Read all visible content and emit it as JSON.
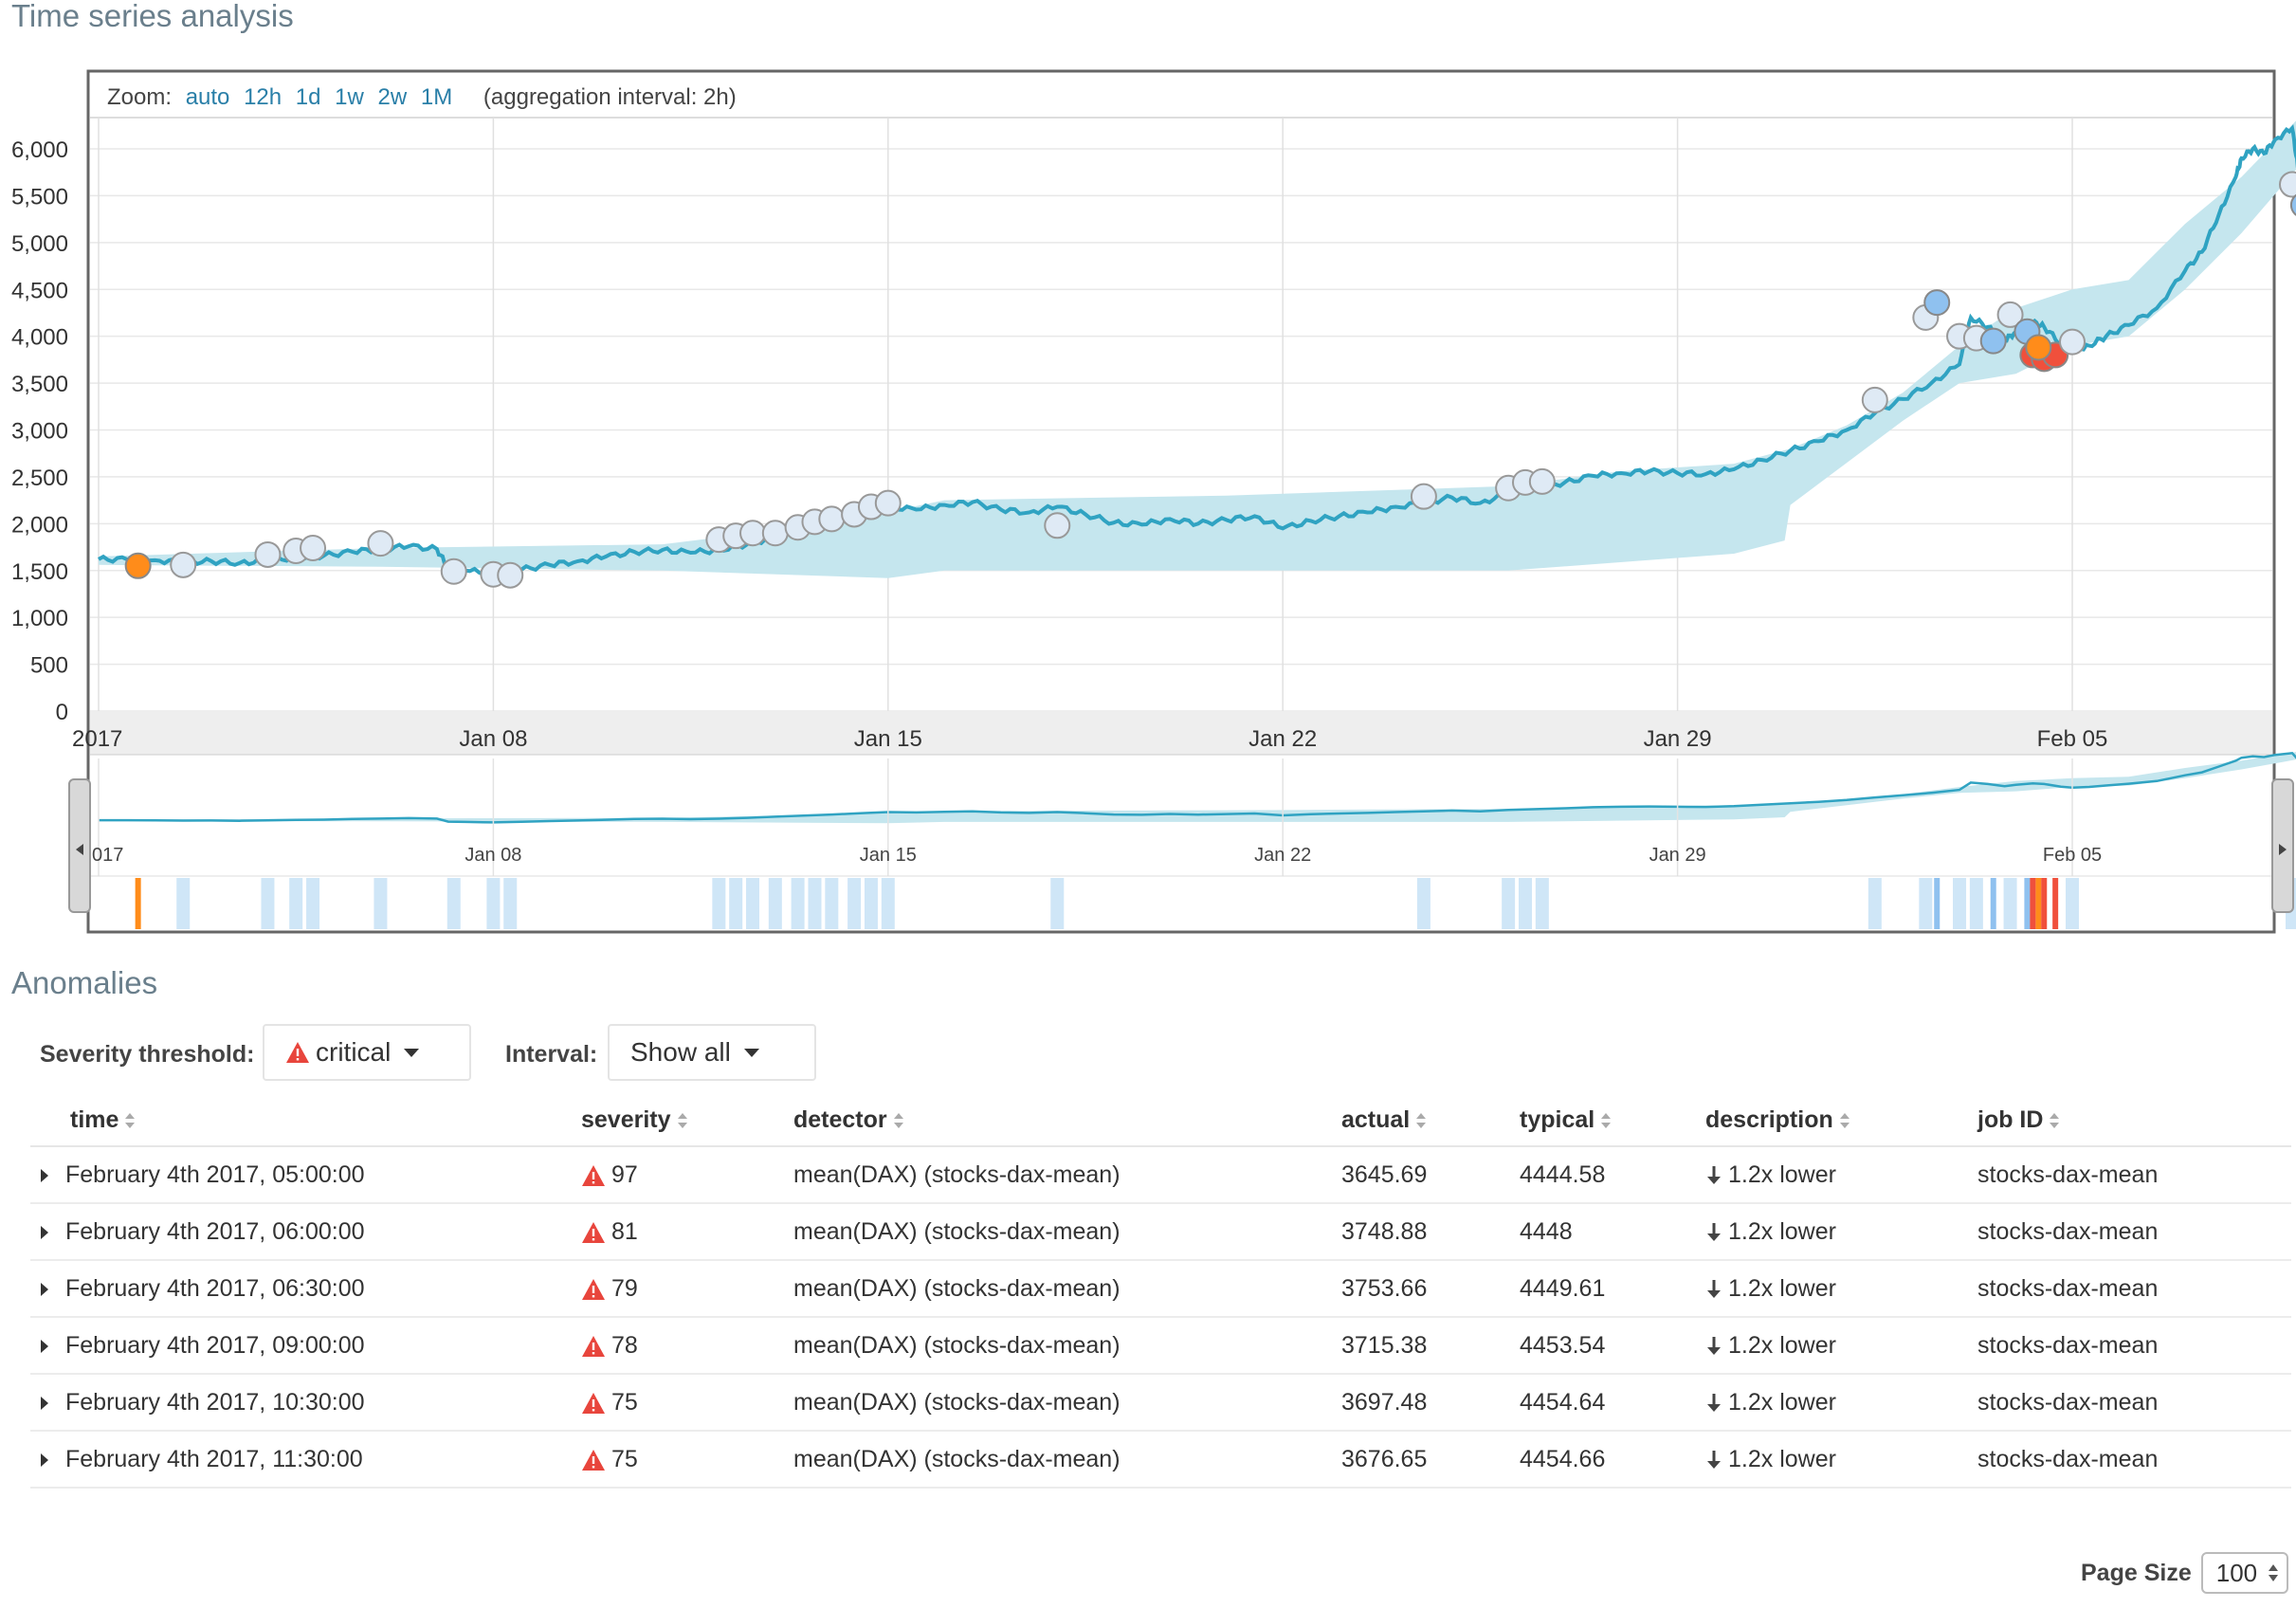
{
  "titles": {
    "timeseries": "Time series analysis",
    "anomalies": "Anomalies"
  },
  "zoom": {
    "label": "Zoom:",
    "options": [
      "auto",
      "12h",
      "1d",
      "1w",
      "2w",
      "1M"
    ],
    "aggregation": "(aggregation interval: 2h)"
  },
  "colors": {
    "line": "#30a3c2",
    "band": "#c5e6ee",
    "marker_low": "#dfeaf5",
    "marker_minor": "#8fc1ef",
    "marker_major": "#ff8c1a",
    "marker_critical": "#f0503c",
    "swimlane_low": "#cfe6f7",
    "link": "#2a7fa8"
  },
  "chart_data": {
    "type": "line",
    "y_ticks": [
      "6,000",
      "5,500",
      "5,000",
      "4,500",
      "4,000",
      "3,500",
      "3,000",
      "2,500",
      "2,000",
      "1,500",
      "1,000",
      "500",
      "0"
    ],
    "x_ticks": [
      "2017",
      "Jan 08",
      "Jan 15",
      "Jan 22",
      "Jan 29",
      "Feb 05"
    ],
    "context_x_ticks": [
      "017",
      "Jan 08",
      "Jan 15",
      "Jan 22",
      "Jan 29",
      "Feb 05"
    ],
    "ylim": [
      0,
      6300
    ],
    "xlim_days": [
      0,
      38
    ],
    "series_points": [
      [
        0,
        1620
      ],
      [
        0.5,
        1620
      ],
      [
        1,
        1610
      ],
      [
        1.5,
        1590
      ],
      [
        2,
        1600
      ],
      [
        2.5,
        1580
      ],
      [
        3,
        1610
      ],
      [
        3.5,
        1640
      ],
      [
        4,
        1660
      ],
      [
        4.5,
        1700
      ],
      [
        5,
        1730
      ],
      [
        5.5,
        1760
      ],
      [
        6,
        1730
      ],
      [
        6.2,
        1520
      ],
      [
        6.5,
        1500
      ],
      [
        7,
        1470
      ],
      [
        7.5,
        1510
      ],
      [
        8,
        1560
      ],
      [
        8.5,
        1600
      ],
      [
        9,
        1650
      ],
      [
        9.5,
        1700
      ],
      [
        10,
        1720
      ],
      [
        10.5,
        1690
      ],
      [
        11,
        1720
      ],
      [
        11.5,
        1780
      ],
      [
        12,
        1860
      ],
      [
        12.5,
        1940
      ],
      [
        13,
        2010
      ],
      [
        13.5,
        2090
      ],
      [
        14,
        2180
      ],
      [
        14.5,
        2150
      ],
      [
        15,
        2200
      ],
      [
        15.5,
        2230
      ],
      [
        16,
        2150
      ],
      [
        16.5,
        2120
      ],
      [
        17,
        2180
      ],
      [
        17.5,
        2100
      ],
      [
        18,
        2010
      ],
      [
        18.5,
        1990
      ],
      [
        19,
        2050
      ],
      [
        19.5,
        2000
      ],
      [
        20,
        2040
      ],
      [
        20.5,
        2080
      ],
      [
        21,
        1950
      ],
      [
        21.5,
        2030
      ],
      [
        22,
        2080
      ],
      [
        22.5,
        2120
      ],
      [
        23,
        2180
      ],
      [
        23.5,
        2220
      ],
      [
        24,
        2280
      ],
      [
        24.5,
        2220
      ],
      [
        25,
        2320
      ],
      [
        25.5,
        2380
      ],
      [
        26,
        2440
      ],
      [
        26.5,
        2510
      ],
      [
        27,
        2540
      ],
      [
        27.5,
        2560
      ],
      [
        28,
        2540
      ],
      [
        28.5,
        2530
      ],
      [
        29,
        2580
      ],
      [
        29.5,
        2680
      ],
      [
        30,
        2780
      ],
      [
        30.5,
        2880
      ],
      [
        31,
        3000
      ],
      [
        31.5,
        3180
      ],
      [
        32,
        3330
      ],
      [
        32.5,
        3500
      ],
      [
        33,
        3700
      ],
      [
        33.2,
        4200
      ],
      [
        33.5,
        4100
      ],
      [
        33.8,
        3950
      ],
      [
        34,
        4050
      ],
      [
        34.3,
        4150
      ],
      [
        34.5,
        4100
      ],
      [
        34.8,
        3920
      ],
      [
        35,
        3850
      ],
      [
        35.3,
        3900
      ],
      [
        35.6,
        4000
      ],
      [
        36,
        4120
      ],
      [
        36.5,
        4300
      ],
      [
        37,
        4700
      ],
      [
        37.3,
        4900
      ],
      [
        37.6,
        5300
      ],
      [
        37.9,
        5700
      ],
      [
        38,
        5900
      ],
      [
        38.2,
        6000
      ],
      [
        38.4,
        5950
      ],
      [
        38.6,
        6100
      ],
      [
        38.9,
        6220
      ],
      [
        39,
        5800
      ]
    ],
    "band_upper_days": [
      [
        0,
        1650
      ],
      [
        5,
        1740
      ],
      [
        10,
        1780
      ],
      [
        13,
        2000
      ],
      [
        15,
        2250
      ],
      [
        20,
        2300
      ],
      [
        25,
        2400
      ],
      [
        27,
        2560
      ],
      [
        29,
        2640
      ],
      [
        30,
        2800
      ],
      [
        31,
        3050
      ],
      [
        32,
        3400
      ],
      [
        33,
        3900
      ],
      [
        34,
        4300
      ],
      [
        35,
        4500
      ],
      [
        36,
        4600
      ],
      [
        37,
        5200
      ],
      [
        38,
        5700
      ],
      [
        39,
        6320
      ]
    ],
    "band_lower_days": [
      [
        0,
        1560
      ],
      [
        5,
        1540
      ],
      [
        10,
        1500
      ],
      [
        14,
        1420
      ],
      [
        15,
        1500
      ],
      [
        20,
        1500
      ],
      [
        25,
        1500
      ],
      [
        29,
        1680
      ],
      [
        29.9,
        1820
      ],
      [
        30,
        2200
      ],
      [
        31,
        2650
      ],
      [
        32,
        3100
      ],
      [
        33,
        3500
      ],
      [
        34,
        3600
      ],
      [
        35,
        3900
      ],
      [
        36,
        4000
      ],
      [
        37,
        4500
      ],
      [
        38,
        5100
      ],
      [
        39,
        5800
      ]
    ],
    "anomaly_markers": [
      {
        "day": 0.7,
        "value": 1550,
        "severity": "major"
      },
      {
        "day": 1.5,
        "value": 1560,
        "severity": "low"
      },
      {
        "day": 3.0,
        "value": 1670,
        "severity": "low"
      },
      {
        "day": 3.5,
        "value": 1710,
        "severity": "low"
      },
      {
        "day": 3.8,
        "value": 1740,
        "severity": "low"
      },
      {
        "day": 5.0,
        "value": 1790,
        "severity": "low"
      },
      {
        "day": 6.3,
        "value": 1490,
        "severity": "low"
      },
      {
        "day": 7.0,
        "value": 1460,
        "severity": "low"
      },
      {
        "day": 7.3,
        "value": 1450,
        "severity": "low"
      },
      {
        "day": 11.0,
        "value": 1830,
        "severity": "low"
      },
      {
        "day": 11.3,
        "value": 1870,
        "severity": "low"
      },
      {
        "day": 11.6,
        "value": 1900,
        "severity": "low"
      },
      {
        "day": 12.0,
        "value": 1900,
        "severity": "low"
      },
      {
        "day": 12.4,
        "value": 1960,
        "severity": "low"
      },
      {
        "day": 12.7,
        "value": 2020,
        "severity": "low"
      },
      {
        "day": 13.0,
        "value": 2050,
        "severity": "low"
      },
      {
        "day": 13.4,
        "value": 2100,
        "severity": "low"
      },
      {
        "day": 13.7,
        "value": 2180,
        "severity": "low"
      },
      {
        "day": 14.0,
        "value": 2220,
        "severity": "low"
      },
      {
        "day": 17.0,
        "value": 1980,
        "severity": "low"
      },
      {
        "day": 23.5,
        "value": 2290,
        "severity": "low"
      },
      {
        "day": 25.0,
        "value": 2380,
        "severity": "low"
      },
      {
        "day": 25.3,
        "value": 2440,
        "severity": "low"
      },
      {
        "day": 25.6,
        "value": 2450,
        "severity": "low"
      },
      {
        "day": 31.5,
        "value": 3320,
        "severity": "low"
      },
      {
        "day": 32.4,
        "value": 4200,
        "severity": "low"
      },
      {
        "day": 32.6,
        "value": 4360,
        "severity": "minor"
      },
      {
        "day": 33.0,
        "value": 4000,
        "severity": "low"
      },
      {
        "day": 33.3,
        "value": 3980,
        "severity": "low"
      },
      {
        "day": 33.6,
        "value": 3950,
        "severity": "minor"
      },
      {
        "day": 33.9,
        "value": 4230,
        "severity": "low"
      },
      {
        "day": 34.2,
        "value": 4050,
        "severity": "minor"
      },
      {
        "day": 34.3,
        "value": 3800,
        "severity": "critical"
      },
      {
        "day": 34.5,
        "value": 3760,
        "severity": "critical"
      },
      {
        "day": 34.7,
        "value": 3800,
        "severity": "critical"
      },
      {
        "day": 34.4,
        "value": 3880,
        "severity": "major"
      },
      {
        "day": 35.0,
        "value": 3940,
        "severity": "low"
      },
      {
        "day": 38.9,
        "value": 5620,
        "severity": "low"
      },
      {
        "day": 39.1,
        "value": 5400,
        "severity": "minor"
      }
    ]
  },
  "controls": {
    "severity_label": "Severity threshold:",
    "severity_value": "critical",
    "interval_label": "Interval:",
    "interval_value": "Show all"
  },
  "table": {
    "columns": [
      "time",
      "severity",
      "detector",
      "actual",
      "typical",
      "description",
      "job ID"
    ],
    "rows": [
      {
        "time": "February 4th 2017, 05:00:00",
        "severity": "97",
        "detector": "mean(DAX) (stocks-dax-mean)",
        "actual": "3645.69",
        "typical": "4444.58",
        "description": "1.2x lower",
        "job": "stocks-dax-mean"
      },
      {
        "time": "February 4th 2017, 06:00:00",
        "severity": "81",
        "detector": "mean(DAX) (stocks-dax-mean)",
        "actual": "3748.88",
        "typical": "4448",
        "description": "1.2x lower",
        "job": "stocks-dax-mean"
      },
      {
        "time": "February 4th 2017, 06:30:00",
        "severity": "79",
        "detector": "mean(DAX) (stocks-dax-mean)",
        "actual": "3753.66",
        "typical": "4449.61",
        "description": "1.2x lower",
        "job": "stocks-dax-mean"
      },
      {
        "time": "February 4th 2017, 09:00:00",
        "severity": "78",
        "detector": "mean(DAX) (stocks-dax-mean)",
        "actual": "3715.38",
        "typical": "4453.54",
        "description": "1.2x lower",
        "job": "stocks-dax-mean"
      },
      {
        "time": "February 4th 2017, 10:30:00",
        "severity": "75",
        "detector": "mean(DAX) (stocks-dax-mean)",
        "actual": "3697.48",
        "typical": "4454.64",
        "description": "1.2x lower",
        "job": "stocks-dax-mean"
      },
      {
        "time": "February 4th 2017, 11:30:00",
        "severity": "75",
        "detector": "mean(DAX) (stocks-dax-mean)",
        "actual": "3676.65",
        "typical": "4454.66",
        "description": "1.2x lower",
        "job": "stocks-dax-mean"
      }
    ]
  },
  "pagination": {
    "label": "Page Size",
    "value": "100"
  }
}
